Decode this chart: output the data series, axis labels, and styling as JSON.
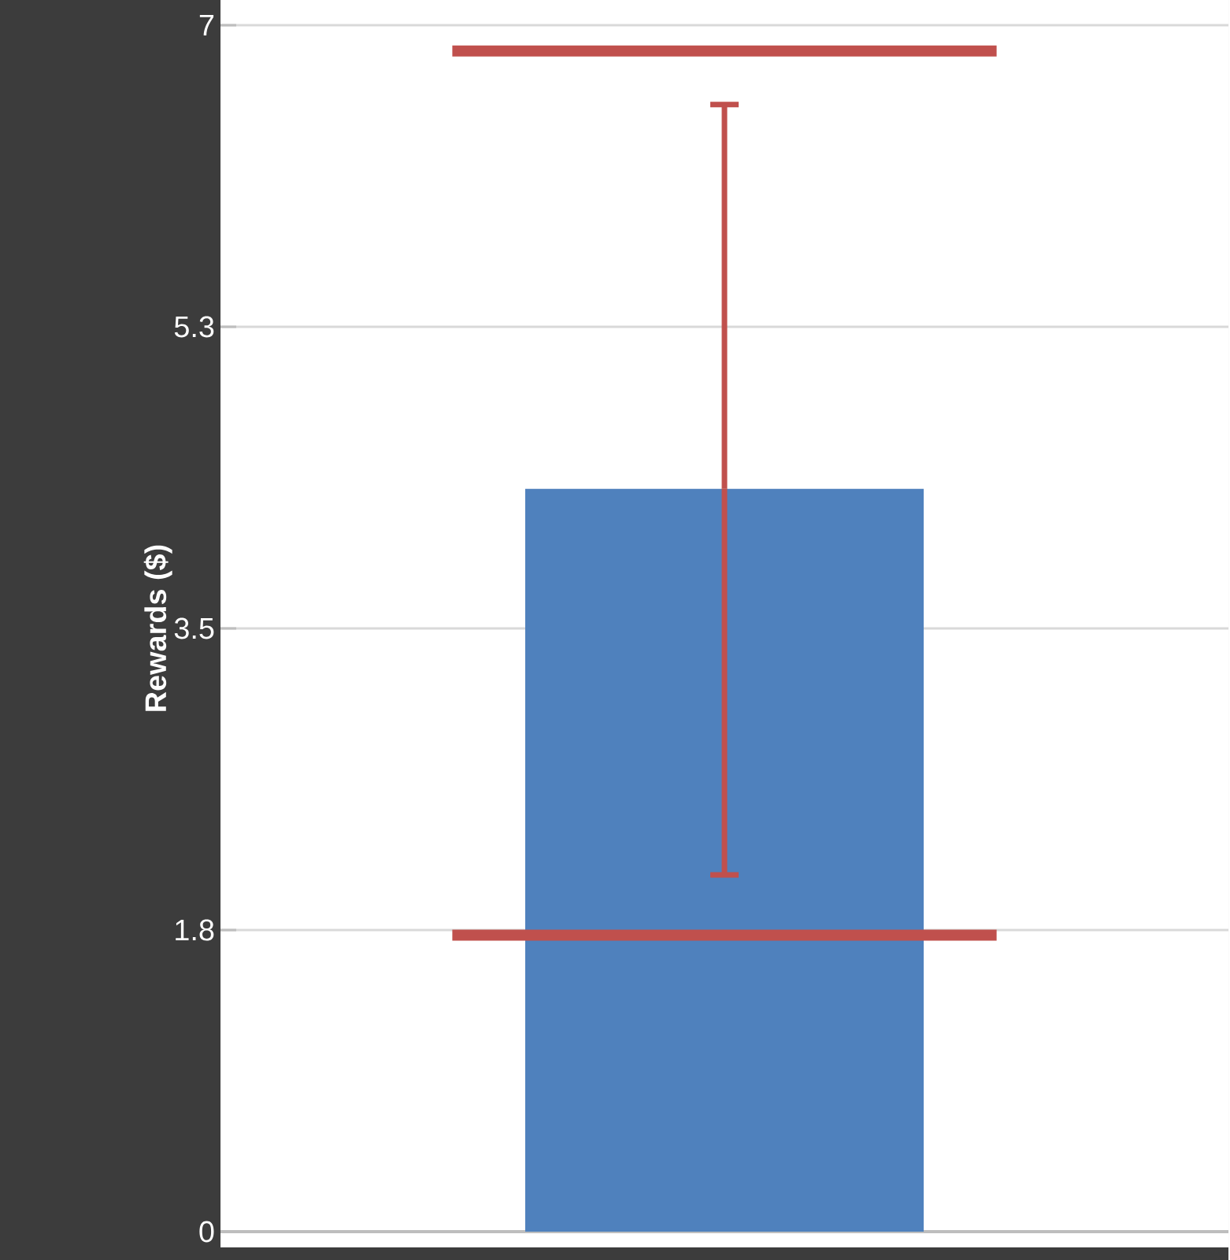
{
  "chart_data": {
    "type": "bar",
    "ylabel": "Rewards ($)",
    "categories": [
      null
    ],
    "series": [
      {
        "color": "#4f81bd",
        "values": [
          4.31
        ],
        "errors": [
          [
            2.07,
            6.54
          ]
        ]
      }
    ],
    "ref_lines": [
      {
        "axis": "y",
        "value": 6.85,
        "color": "#c0504d"
      },
      {
        "axis": "y",
        "value": 1.72,
        "color": "#c0504d"
      }
    ],
    "ylim": [
      0,
      7
    ],
    "yticks": [
      0,
      {
        "value": 1.75,
        "label": "1.8"
      },
      {
        "value": 3.5,
        "label": "3.5"
      },
      {
        "value": 5.25,
        "label": "5.3"
      },
      7
    ],
    "grid": "y"
  }
}
